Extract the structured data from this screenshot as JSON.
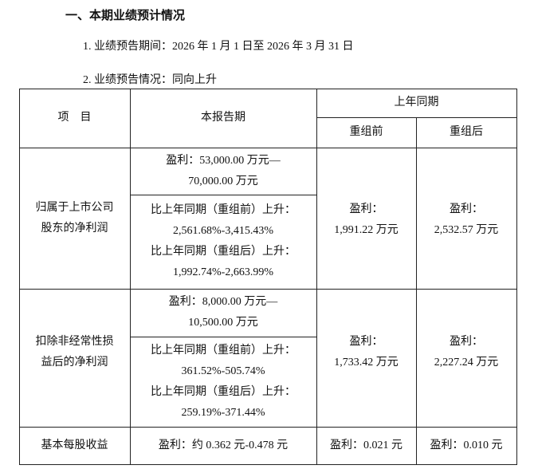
{
  "section_title": "一、本期业绩预计情况",
  "items": [
    "1. 业绩预告期间：2026 年 1 月 1 日至 2026 年 3 月 31 日",
    "2. 业绩预告情况：同向上升"
  ],
  "table": {
    "headers": {
      "item": "项　目",
      "current": "本报告期",
      "prior": "上年同期",
      "before": "重组前",
      "after": "重组后"
    },
    "rows": [
      {
        "label": [
          "归属于上市公司",
          "股东的净利润"
        ],
        "current_profit": [
          "盈利：53,000.00 万元—",
          "70,000.00 万元"
        ],
        "change": [
          "比上年同期（重组前）上升：",
          "2,561.68%-3,415.43%",
          "比上年同期（重组后）上升：",
          "1,992.74%-2,663.99%"
        ],
        "before": [
          "盈利：",
          "1,991.22 万元"
        ],
        "after": [
          "盈利：",
          "2,532.57 万元"
        ]
      },
      {
        "label": [
          "扣除非经常性损",
          "益后的净利润"
        ],
        "current_profit": [
          "盈利：8,000.00 万元—",
          "10,500.00 万元"
        ],
        "change": [
          "比上年同期（重组前）上升：",
          "361.52%-505.74%",
          "比上年同期（重组后）上升：",
          "259.19%-371.44%"
        ],
        "before": [
          "盈利：",
          "1,733.42 万元"
        ],
        "after": [
          "盈利：",
          "2,227.24 万元"
        ]
      },
      {
        "label": [
          "基本每股收益"
        ],
        "current_profit": [
          "盈利：约 0.362 元-0.478 元"
        ],
        "before": [
          "盈利：0.021 元"
        ],
        "after": [
          "盈利：0.010 元"
        ]
      }
    ]
  }
}
